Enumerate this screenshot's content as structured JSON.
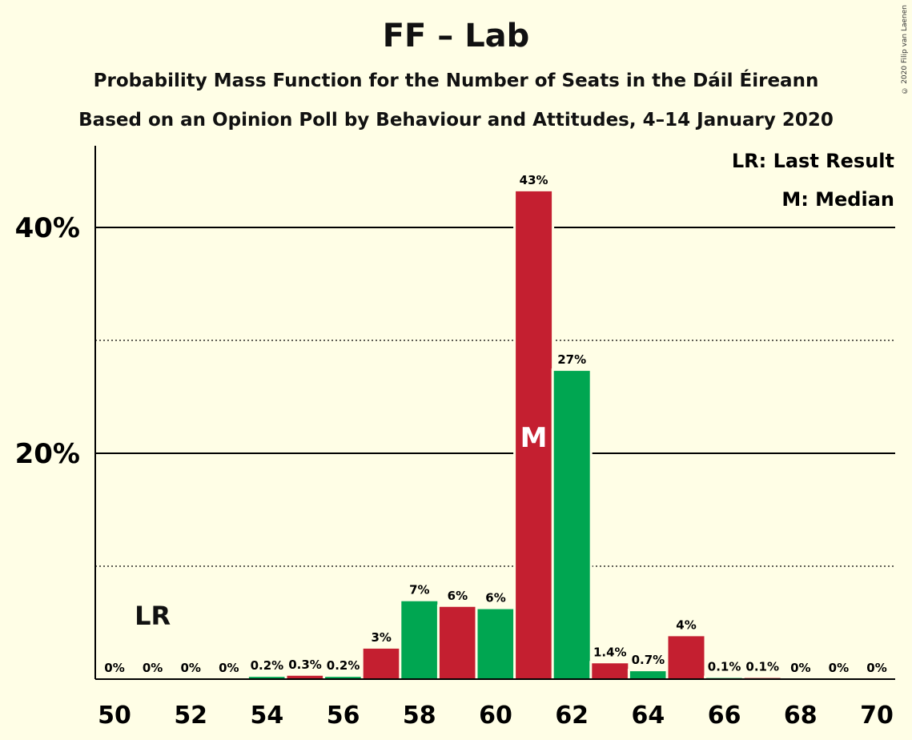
{
  "header": {
    "title": "FF – Lab",
    "subtitle1": "Probability Mass Function for the Number of Seats in the Dáil Éireann",
    "subtitle2": "Based on an Opinion Poll by Behaviour and Attitudes, 4–14 January 2020",
    "copyright": "© 2020 Filip van Laenen"
  },
  "legend": {
    "lr": "LR: Last Result",
    "m": "M: Median"
  },
  "colors": {
    "red": "#C41F30",
    "green": "#00A651",
    "background": "#FFFEE6"
  },
  "chart_data": {
    "type": "bar",
    "x": [
      50,
      51,
      52,
      53,
      54,
      55,
      56,
      57,
      58,
      59,
      60,
      61,
      62,
      63,
      64,
      65,
      66,
      67,
      68,
      69,
      70
    ],
    "values": [
      0,
      0,
      0,
      0,
      0.2,
      0.3,
      0.2,
      2.7,
      6.9,
      6.4,
      6.2,
      43.2,
      27.3,
      1.4,
      0.7,
      3.8,
      0.1,
      0.1,
      0,
      0,
      0
    ],
    "labels": [
      "0%",
      "0%",
      "0%",
      "0%",
      "0.2%",
      "0.3%",
      "0.2%",
      "3%",
      "7%",
      "6%",
      "6%",
      "43%",
      "27%",
      "1.4%",
      "0.7%",
      "4%",
      "0.1%",
      "0.1%",
      "0%",
      "0%",
      "0%"
    ],
    "bar_colors": [
      "green",
      "red",
      "green",
      "red",
      "green",
      "red",
      "green",
      "red",
      "green",
      "red",
      "green",
      "red",
      "green",
      "red",
      "green",
      "red",
      "green",
      "red",
      "green",
      "red",
      "green"
    ],
    "x_ticks": [
      50,
      52,
      54,
      56,
      58,
      60,
      62,
      64,
      66,
      68,
      70
    ],
    "x_tick_labels": [
      "50",
      "52",
      "54",
      "56",
      "58",
      "60",
      "62",
      "64",
      "66",
      "68",
      "70"
    ],
    "y_ticks_major": [
      20,
      40
    ],
    "y_tick_labels": [
      "20%",
      "40%"
    ],
    "y_ticks_minor": [
      10,
      30
    ],
    "ylim": [
      0,
      47
    ],
    "last_result": 51,
    "last_result_label": "LR",
    "median": 61,
    "median_label": "M",
    "legend_placement": "top-right"
  }
}
